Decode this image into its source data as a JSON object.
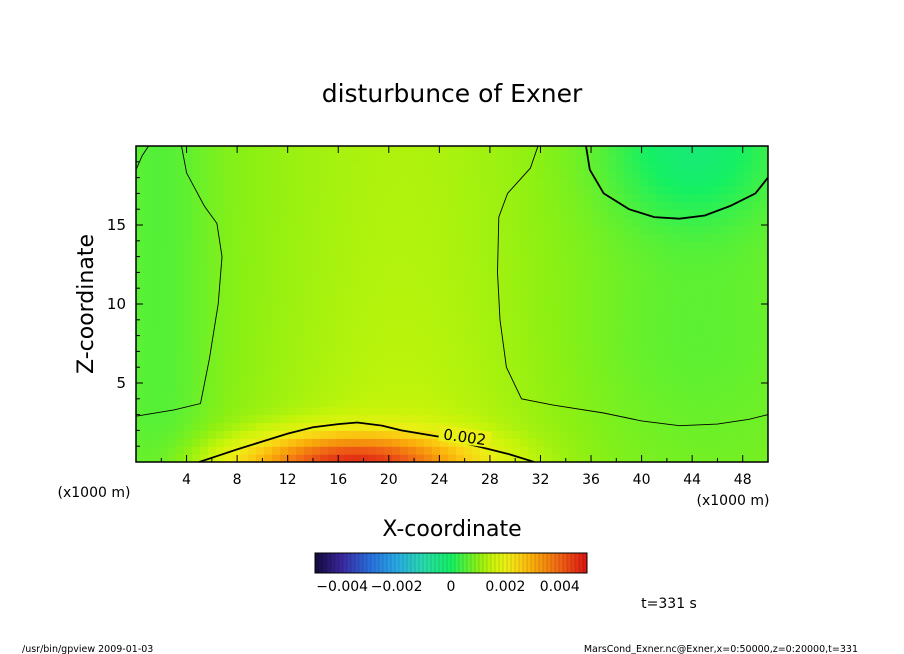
{
  "chart_data": {
    "type": "heatmap",
    "title": "disturbunce of Exner",
    "xlabel": "X-coordinate",
    "ylabel": "Z-coordinate",
    "x_unit_left": "(x1000 m)",
    "x_unit_right": "(x1000 m)",
    "xlim": [
      0,
      50
    ],
    "ylim": [
      0,
      20
    ],
    "x_ticks": [
      4,
      8,
      12,
      16,
      20,
      24,
      28,
      32,
      36,
      40,
      44,
      48
    ],
    "y_ticks": [
      5,
      10,
      15
    ],
    "colorbar": {
      "range": [
        -0.005,
        0.005
      ],
      "tick_values": [
        -0.004,
        -0.002,
        0,
        0.002,
        0.004
      ],
      "tick_labels": [
        "−0.004",
        "−0.002",
        "0",
        "0.002",
        "0.004"
      ]
    },
    "contour_labels": [
      {
        "text": "0.002",
        "x": 26,
        "z": 1.5
      }
    ],
    "contour_levels": [
      0.0,
      0.001,
      0.002
    ],
    "annotation_time": "t=331 s",
    "footer_left": "/usr/bin/gpview  2009-01-03",
    "footer_right": "MarsCond_Exner.nc@Exner,x=0:50000,z=0:20000,t=331",
    "grid": false,
    "colors": {
      "low": "#1a1a6e",
      "mid": "#7cfc00",
      "high": "#ff2a00"
    }
  }
}
